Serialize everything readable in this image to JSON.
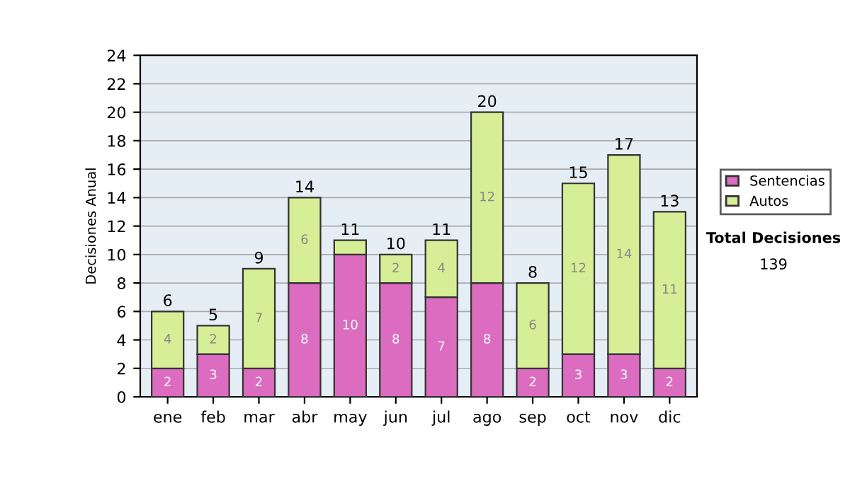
{
  "chart_data": {
    "type": "bar",
    "stacked": true,
    "ylabel": "Decisiones Anual",
    "categories": [
      "ene",
      "feb",
      "mar",
      "abr",
      "may",
      "jun",
      "jul",
      "ago",
      "sep",
      "oct",
      "nov",
      "dic"
    ],
    "series": [
      {
        "name": "Sentencias",
        "color": "#dc6cc0",
        "values": [
          2,
          3,
          2,
          8,
          10,
          8,
          7,
          8,
          2,
          3,
          3,
          2
        ],
        "value_labels": [
          "2",
          "3",
          "2",
          "8",
          "10",
          "8",
          "7",
          "8",
          "2",
          "3",
          "3",
          "2"
        ]
      },
      {
        "name": "Autos",
        "color": "#d6ee96",
        "values": [
          4,
          2,
          7,
          6,
          1,
          2,
          4,
          12,
          6,
          12,
          14,
          11
        ],
        "value_labels": [
          "4",
          "2",
          "7",
          "6",
          null,
          "2",
          "4",
          "12",
          "6",
          "12",
          "14",
          "11"
        ]
      }
    ],
    "totals": [
      "6",
      "5",
      "9",
      "14",
      "11",
      "10",
      "11",
      "20",
      "8",
      "15",
      "17",
      "13"
    ],
    "ylim": [
      0,
      24
    ],
    "yticks": [
      0,
      2,
      4,
      6,
      8,
      10,
      12,
      14,
      16,
      18,
      20,
      22,
      24
    ],
    "grid": "y",
    "legend": "right",
    "annotations": [
      "Total Decisiones",
      "139"
    ]
  }
}
